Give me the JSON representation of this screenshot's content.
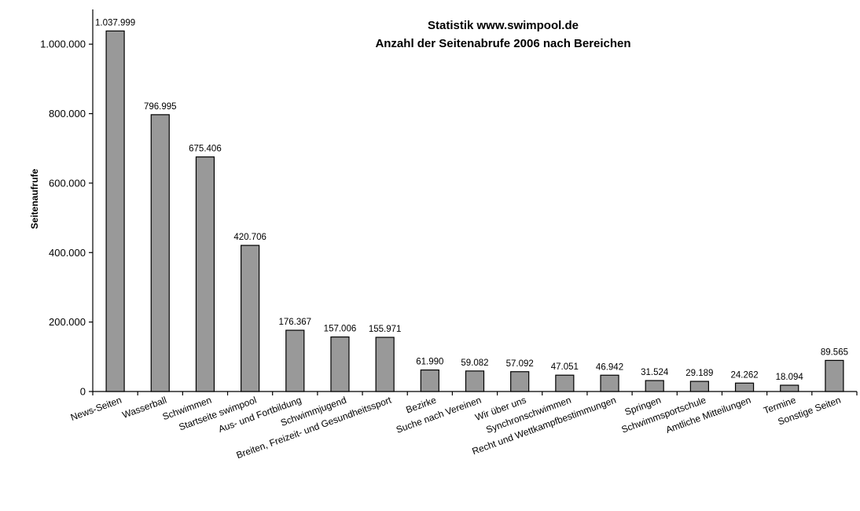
{
  "chart_data": {
    "type": "bar",
    "title_lines": [
      "Statistik www.swimpool.de",
      "Anzahl der Seitenabrufe 2006 nach Bereichen"
    ],
    "xlabel": "",
    "ylabel": "Seitenaufrufe",
    "ylim": [
      0,
      1100000
    ],
    "yticks": [
      0,
      200000,
      400000,
      600000,
      800000,
      1000000
    ],
    "ytick_labels": [
      "0",
      "200.000",
      "400.000",
      "600.000",
      "800.000",
      "1.000.000"
    ],
    "grid": false,
    "legend": "none",
    "bar_color": "#999999",
    "categories": [
      "News-Seiten",
      "Wasserball",
      "Schwimmen",
      "Startseite swimpool",
      "Aus- und Fortbildung",
      "Schwimmjugend",
      "Breiten, Freizeit- und Gesundheitssport",
      "Bezirke",
      "Suche nach Vereinen",
      "Wir über uns",
      "Synchronschwimmen",
      "Recht und Wettkampfbestimmungen",
      "Springen",
      "Schwimmsportschule",
      "Amtliche Mitteilungen",
      "Termine",
      "Sonstige Seiten"
    ],
    "values": [
      1037999,
      796995,
      675406,
      420706,
      176367,
      157006,
      155971,
      61990,
      59082,
      57092,
      47051,
      46942,
      31524,
      29189,
      24262,
      18094,
      89565
    ],
    "value_labels": [
      "1.037.999",
      "796.995",
      "675.406",
      "420.706",
      "176.367",
      "157.006",
      "155.971",
      "61.990",
      "59.082",
      "57.092",
      "47.051",
      "46.942",
      "31.524",
      "29.189",
      "24.262",
      "18.094",
      "89.565"
    ]
  }
}
